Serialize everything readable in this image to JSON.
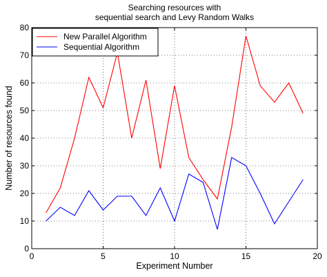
{
  "chart_data": {
    "type": "line",
    "title_lines": [
      "Searching resources with",
      "sequential search and Levy Random Walks"
    ],
    "xlabel": "Experiment Number",
    "ylabel": "Number of resources found",
    "xlim": [
      0,
      20
    ],
    "ylim": [
      0,
      80
    ],
    "xticks": [
      0,
      5,
      10,
      15,
      20
    ],
    "yticks": [
      0,
      10,
      20,
      30,
      40,
      50,
      60,
      70,
      80
    ],
    "grid": true,
    "grid_style": "dotted",
    "legend_position": "top-left",
    "x": [
      1,
      2,
      3,
      4,
      5,
      6,
      7,
      8,
      9,
      10,
      11,
      12,
      13,
      14,
      15,
      16,
      17,
      18,
      19
    ],
    "series": [
      {
        "name": "New Parallel Algorithm",
        "color": "#ff0000",
        "values": [
          13,
          22,
          40,
          62,
          51,
          71,
          40,
          61,
          29,
          59,
          33,
          25,
          18,
          44,
          77,
          59,
          53,
          60,
          49
        ]
      },
      {
        "name": "Sequential Algorithm",
        "color": "#0000ff",
        "values": [
          10,
          15,
          12,
          21,
          14,
          19,
          19,
          12,
          22,
          10,
          27,
          24,
          7,
          33,
          30,
          20,
          9,
          17,
          25
        ]
      }
    ]
  }
}
